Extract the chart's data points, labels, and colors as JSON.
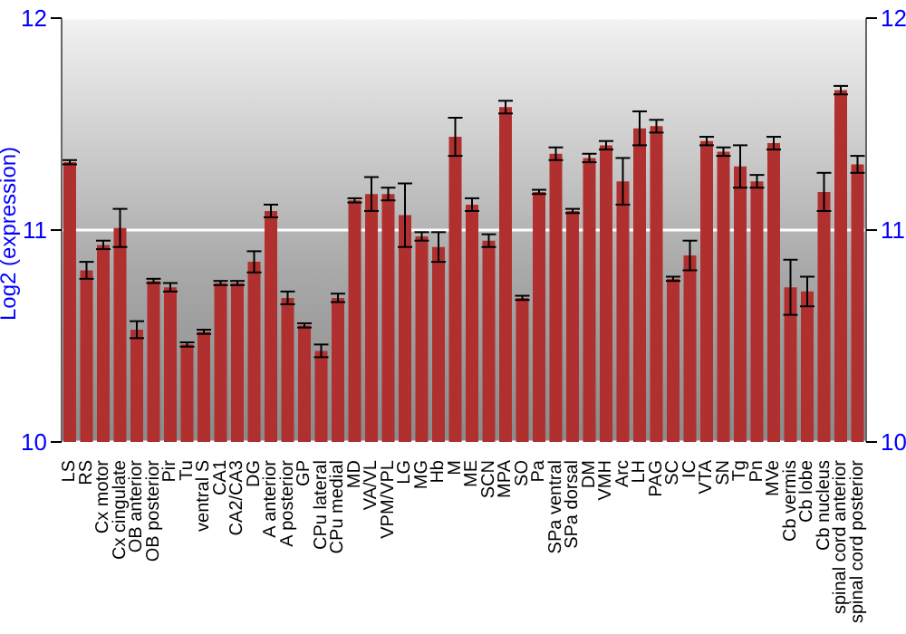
{
  "chart_data": {
    "type": "bar",
    "ylabel": "Log2 (expression)",
    "categories": [
      "LS",
      "RS",
      "Cx motor",
      "Cx cingulate",
      "OB anterior",
      "OB posterior",
      "Pir",
      "Tu",
      "ventral S",
      "CA1",
      "CA2/CA3",
      "DG",
      "A anterior",
      "A posterior",
      "GP",
      "CPu lateral",
      "CPu medial",
      "MD",
      "VA/VL",
      "VPM/VPL",
      "LG",
      "MG",
      "Hb",
      "M",
      "ME",
      "SCN",
      "MPA",
      "SO",
      "Pa",
      "SPa ventral",
      "SPa dorsal",
      "DM",
      "VMH",
      "Arc",
      "LH",
      "PAG",
      "SC",
      "IC",
      "VTA",
      "SN",
      "Tg",
      "Pn",
      "MVe",
      "Cb vermis",
      "Cb lobe",
      "Cb nucleus",
      "spinal cord anterior",
      "spinal cord posterior"
    ],
    "values": [
      11.32,
      10.81,
      10.93,
      11.01,
      10.53,
      10.76,
      10.73,
      10.46,
      10.52,
      10.75,
      10.75,
      10.85,
      11.09,
      10.68,
      10.55,
      10.43,
      10.68,
      11.14,
      11.17,
      11.17,
      11.07,
      10.97,
      10.92,
      11.44,
      11.12,
      10.95,
      11.58,
      10.68,
      11.18,
      11.36,
      11.09,
      11.34,
      11.4,
      11.23,
      11.48,
      11.49,
      10.77,
      10.88,
      11.42,
      11.37,
      11.3,
      11.23,
      11.41,
      10.73,
      10.71,
      11.18,
      11.66,
      11.31
    ],
    "errors": [
      0.01,
      0.04,
      0.02,
      0.09,
      0.04,
      0.01,
      0.02,
      0.01,
      0.01,
      0.01,
      0.01,
      0.05,
      0.03,
      0.03,
      0.01,
      0.03,
      0.02,
      0.01,
      0.08,
      0.03,
      0.15,
      0.02,
      0.07,
      0.09,
      0.03,
      0.03,
      0.03,
      0.01,
      0.01,
      0.03,
      0.01,
      0.02,
      0.02,
      0.11,
      0.08,
      0.03,
      0.01,
      0.07,
      0.02,
      0.02,
      0.1,
      0.03,
      0.03,
      0.13,
      0.07,
      0.09,
      0.02,
      0.04
    ],
    "color": "#b03030",
    "ylim": [
      10,
      12
    ],
    "yticks": [
      10,
      11,
      12
    ],
    "y2lim": [
      10,
      12
    ],
    "y2ticks": [
      10,
      11,
      12
    ],
    "grid": "y"
  }
}
